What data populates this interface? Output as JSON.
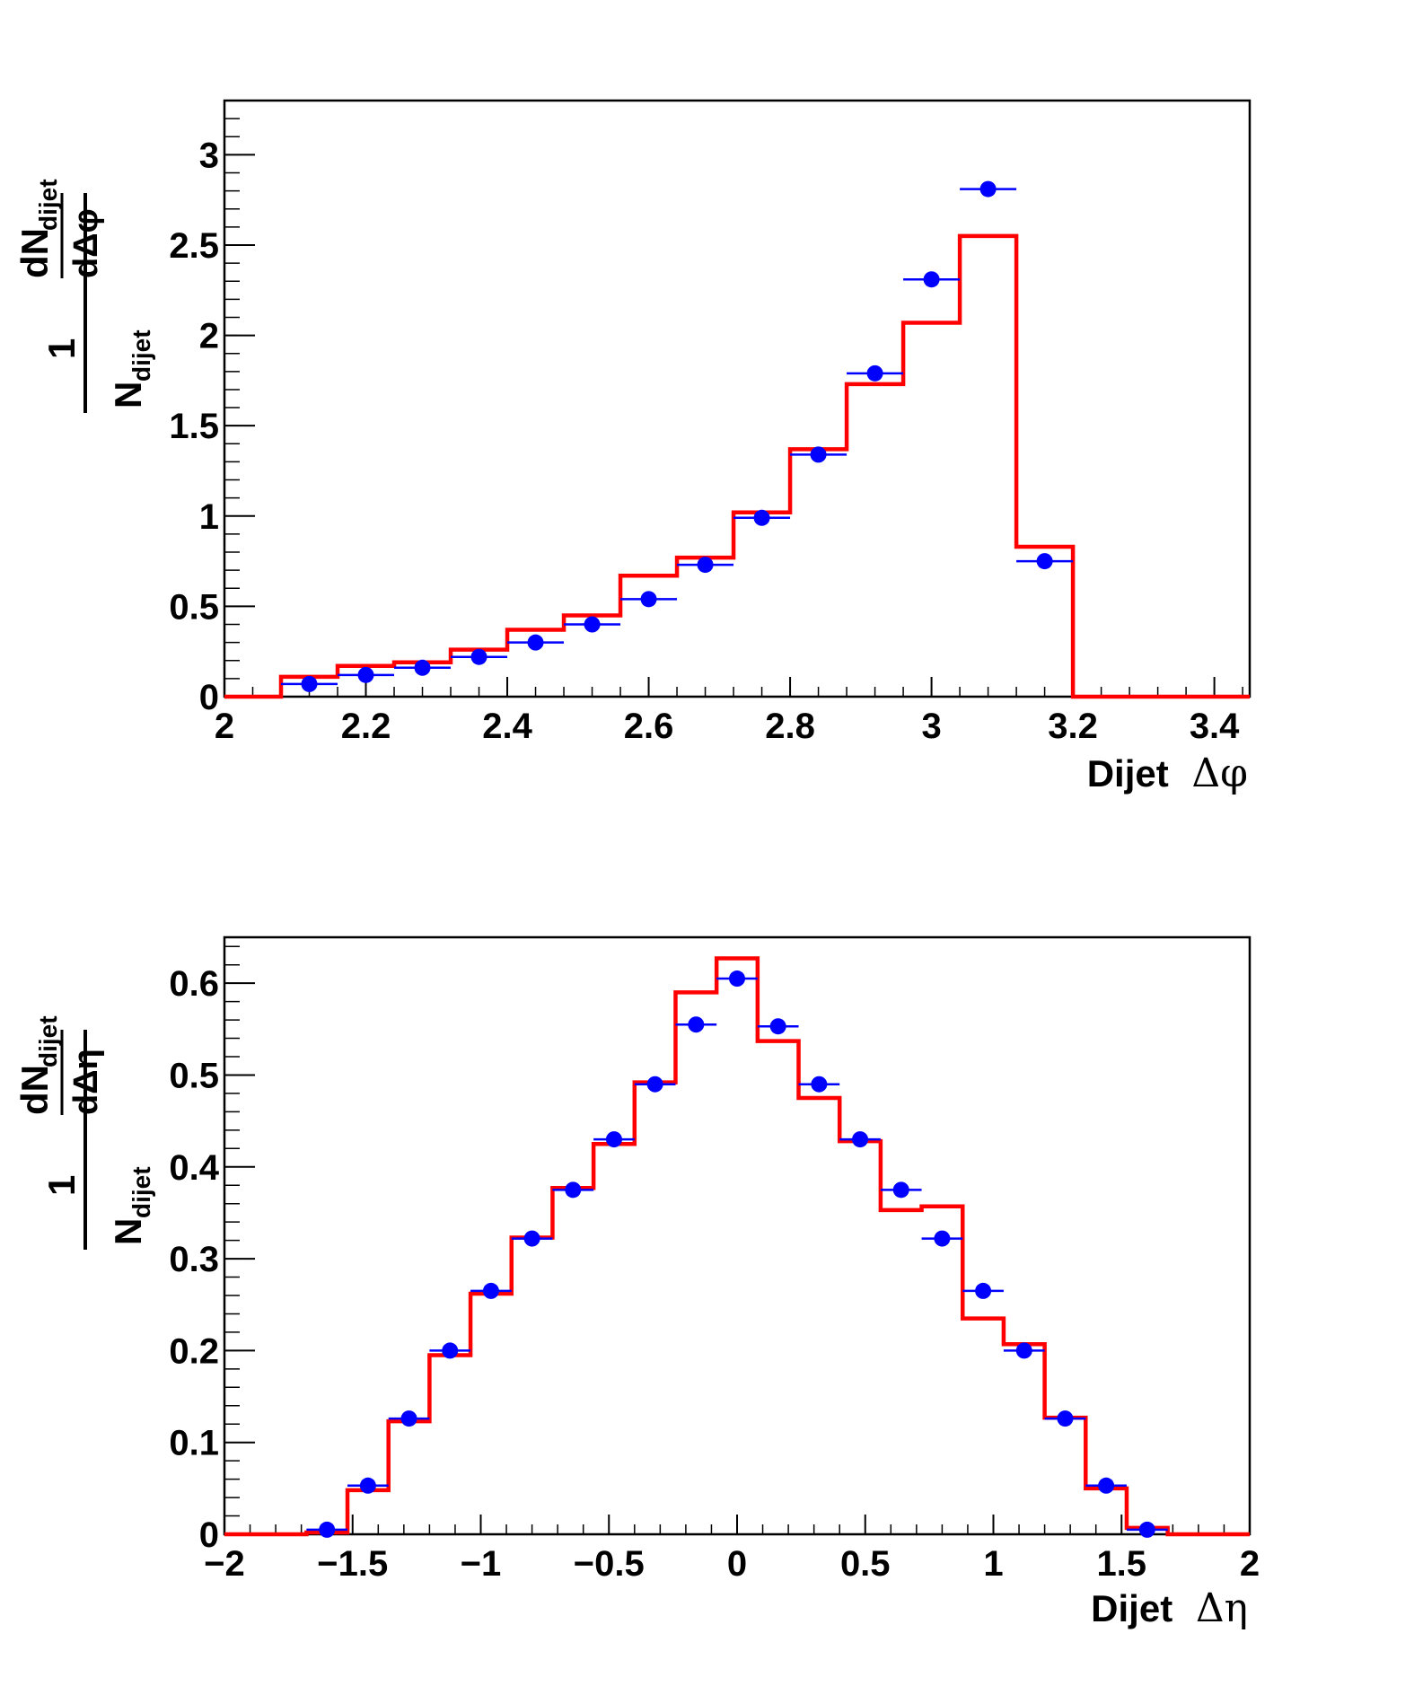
{
  "colors": {
    "data": "#0000ff",
    "mc": "#ff0000",
    "axis": "#000000"
  },
  "chart_data": [
    {
      "type": "histogram",
      "title": "",
      "xlabel": {
        "prefix": "Dijet",
        "symbol": "Δφ"
      },
      "ylabel": {
        "numer_one": "1",
        "denom_N": "N",
        "denom_sub": "dijet",
        "numer_dN": "dN",
        "numer_sub": "dijet",
        "numer_d": "dΔφ"
      },
      "xlim": [
        2.0,
        3.45
      ],
      "ylim": [
        0,
        3.3
      ],
      "x_ticks": [
        "2",
        "2.2",
        "2.4",
        "2.6",
        "2.8",
        "3",
        "3.2",
        "3.4"
      ],
      "y_ticks": [
        "0",
        "0.5",
        "1",
        "1.5",
        "2",
        "2.5",
        "3"
      ],
      "x_tick_values": [
        2.0,
        2.2,
        2.4,
        2.6,
        2.8,
        3.0,
        3.2,
        3.4
      ],
      "y_tick_values": [
        0,
        0.5,
        1,
        1.5,
        2,
        2.5,
        3
      ],
      "x_minor_step": 0.04,
      "y_minor_step": 0.1,
      "bin_edges": [
        2.0,
        2.08,
        2.16,
        2.24,
        2.32,
        2.4,
        2.48,
        2.56,
        2.64,
        2.72,
        2.8,
        2.88,
        2.96,
        3.04,
        3.12,
        3.2,
        3.28,
        3.36,
        3.45
      ],
      "mc_values": [
        0,
        0.11,
        0.17,
        0.19,
        0.26,
        0.37,
        0.45,
        0.67,
        0.77,
        1.02,
        1.37,
        1.73,
        2.07,
        2.55,
        0.83,
        0,
        0,
        0
      ],
      "data_points": [
        {
          "x": 2.12,
          "y": 0.07
        },
        {
          "x": 2.2,
          "y": 0.12
        },
        {
          "x": 2.28,
          "y": 0.16
        },
        {
          "x": 2.36,
          "y": 0.22
        },
        {
          "x": 2.44,
          "y": 0.3
        },
        {
          "x": 2.52,
          "y": 0.4
        },
        {
          "x": 2.6,
          "y": 0.54
        },
        {
          "x": 2.68,
          "y": 0.73
        },
        {
          "x": 2.76,
          "y": 0.99
        },
        {
          "x": 2.84,
          "y": 1.34
        },
        {
          "x": 2.92,
          "y": 1.79
        },
        {
          "x": 3.0,
          "y": 2.31
        },
        {
          "x": 3.08,
          "y": 2.81
        },
        {
          "x": 3.16,
          "y": 0.75
        }
      ],
      "data_xerr": 0.04,
      "grid": false,
      "legend": "none"
    },
    {
      "type": "histogram",
      "title": "",
      "xlabel": {
        "prefix": "Dijet",
        "symbol": "Δη"
      },
      "ylabel": {
        "numer_one": "1",
        "denom_N": "N",
        "denom_sub": "dijet",
        "numer_dN": "dN",
        "numer_sub": "dijet",
        "numer_d": "dΔη"
      },
      "xlim": [
        -2,
        2
      ],
      "ylim": [
        0,
        0.65
      ],
      "x_ticks": [
        "−2",
        "−1.5",
        "−1",
        "−0.5",
        "0",
        "0.5",
        "1",
        "1.5",
        "2"
      ],
      "y_ticks": [
        "0",
        "0.1",
        "0.2",
        "0.3",
        "0.4",
        "0.5",
        "0.6"
      ],
      "x_tick_values": [
        -2,
        -1.5,
        -1,
        -0.5,
        0,
        0.5,
        1,
        1.5,
        2
      ],
      "y_tick_values": [
        0,
        0.1,
        0.2,
        0.3,
        0.4,
        0.5,
        0.6
      ],
      "x_minor_step": 0.1,
      "y_minor_step": 0.02,
      "bin_edges": [
        -2.0,
        -1.68,
        -1.52,
        -1.36,
        -1.2,
        -1.04,
        -0.88,
        -0.72,
        -0.56,
        -0.4,
        -0.24,
        -0.08,
        0.08,
        0.24,
        0.4,
        0.56,
        0.72,
        0.88,
        1.04,
        1.2,
        1.36,
        1.52,
        1.68,
        2.0
      ],
      "mc_values": [
        0,
        0.002,
        0.048,
        0.123,
        0.195,
        0.262,
        0.323,
        0.377,
        0.425,
        0.492,
        0.59,
        0.627,
        0.537,
        0.475,
        0.428,
        0.353,
        0.357,
        0.235,
        0.207,
        0.127,
        0.05,
        0.007,
        0
      ],
      "data_points": [
        {
          "x": -1.6,
          "y": 0.005
        },
        {
          "x": -1.44,
          "y": 0.053
        },
        {
          "x": -1.28,
          "y": 0.126
        },
        {
          "x": -1.12,
          "y": 0.2
        },
        {
          "x": -0.96,
          "y": 0.265
        },
        {
          "x": -0.8,
          "y": 0.322
        },
        {
          "x": -0.64,
          "y": 0.375
        },
        {
          "x": -0.48,
          "y": 0.43
        },
        {
          "x": -0.32,
          "y": 0.49
        },
        {
          "x": -0.16,
          "y": 0.555
        },
        {
          "x": 0.0,
          "y": 0.605
        },
        {
          "x": 0.16,
          "y": 0.553
        },
        {
          "x": 0.32,
          "y": 0.49
        },
        {
          "x": 0.48,
          "y": 0.43
        },
        {
          "x": 0.64,
          "y": 0.375
        },
        {
          "x": 0.8,
          "y": 0.322
        },
        {
          "x": 0.96,
          "y": 0.265
        },
        {
          "x": 1.12,
          "y": 0.2
        },
        {
          "x": 1.28,
          "y": 0.126
        },
        {
          "x": 1.44,
          "y": 0.053
        },
        {
          "x": 1.6,
          "y": 0.005
        }
      ],
      "data_xerr": 0.08,
      "grid": false,
      "legend": "none"
    }
  ]
}
